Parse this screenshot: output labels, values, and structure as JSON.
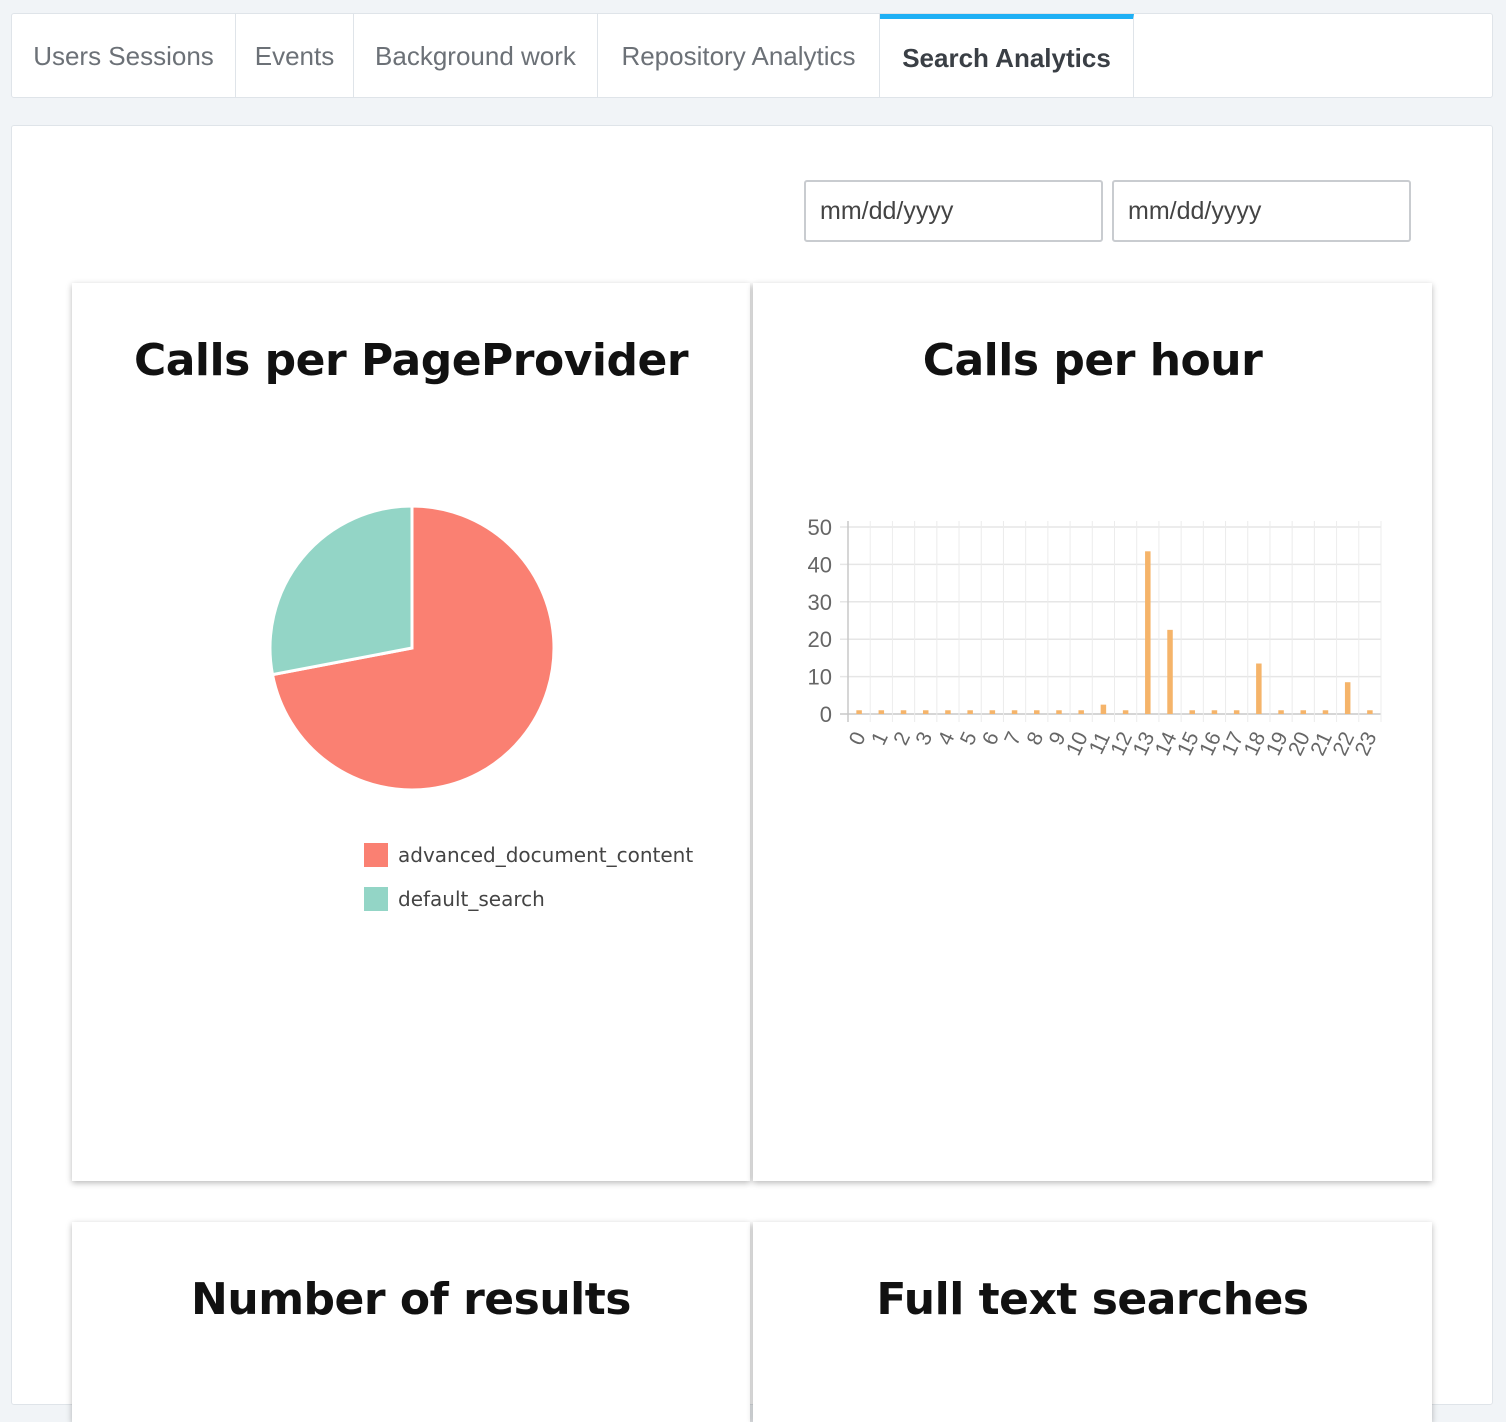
{
  "tabs": [
    {
      "label": "Users Sessions",
      "active": false
    },
    {
      "label": "Events",
      "active": false
    },
    {
      "label": "Background work",
      "active": false
    },
    {
      "label": "Repository Analytics",
      "active": false
    },
    {
      "label": "Search Analytics",
      "active": true
    }
  ],
  "filters": {
    "start_date_placeholder": "mm/dd/yyyy",
    "end_date_placeholder": "mm/dd/yyyy"
  },
  "cards": {
    "pageprovider_title": "Calls per PageProvider",
    "hour_title": "Calls per hour",
    "results_title": "Number of results",
    "fulltext_title": "Full text searches"
  },
  "chart_data": [
    {
      "type": "pie",
      "title": "Calls per PageProvider",
      "categories": [
        "advanced_document_content",
        "default_search"
      ],
      "values": [
        72,
        28
      ],
      "colors": [
        "#fa8072",
        "#93d5c6"
      ],
      "legend": "bottom-right"
    },
    {
      "type": "bar",
      "title": "Calls per hour",
      "categories": [
        "0",
        "1",
        "2",
        "3",
        "4",
        "5",
        "6",
        "7",
        "8",
        "9",
        "10",
        "11",
        "12",
        "13",
        "14",
        "15",
        "16",
        "17",
        "18",
        "19",
        "20",
        "21",
        "22",
        "23"
      ],
      "values": [
        1,
        1,
        1,
        1,
        1,
        1,
        1,
        1,
        1,
        1,
        1,
        2.5,
        1,
        43.5,
        22.5,
        1,
        1,
        1,
        13.5,
        1,
        1,
        1,
        8.5,
        1
      ],
      "ylim": [
        0,
        50
      ],
      "yticks": [
        0,
        10,
        20,
        30,
        40,
        50
      ],
      "grid": true,
      "color": "#f5b46a"
    }
  ]
}
